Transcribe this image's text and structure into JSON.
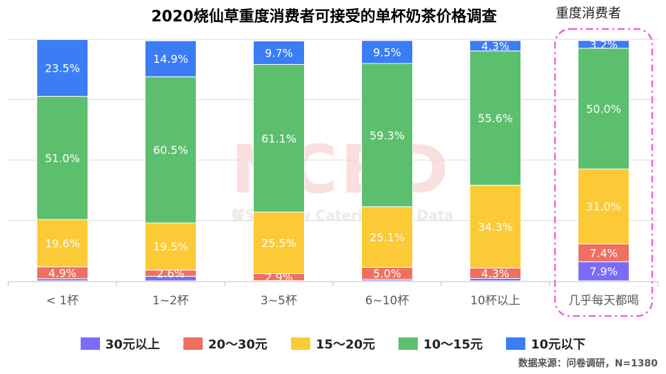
{
  "header": {
    "title": "2020烧仙草重度消费者可接受的单杯奶茶价格调查",
    "highlight_label": "重度消费者",
    "source": "数据来源：问卷调研，N=1380"
  },
  "watermark": {
    "big": "NCBD",
    "small": "餐宝典 New Catering Big Data"
  },
  "chart_data": {
    "type": "bar",
    "stacked": true,
    "ylim": [
      0,
      100
    ],
    "grid": true,
    "legend_position": "bottom",
    "categories": [
      "< 1杯",
      "1~2杯",
      "3~5杯",
      "6~10杯",
      "10杯以上",
      "几乎每天都喝"
    ],
    "series": [
      {
        "name": "30元以上",
        "color": "#7b6cf6",
        "values": [
          0.9,
          1.9,
          0.1,
          0.6,
          1.0,
          7.9
        ],
        "labels": [
          "",
          "",
          "",
          "",
          "",
          "7.9%"
        ]
      },
      {
        "name": "20～30元",
        "color": "#f07060",
        "values": [
          4.9,
          2.6,
          2.9,
          5.0,
          4.3,
          7.4
        ],
        "labels": [
          "4.9%",
          "2.6%",
          "2.9%",
          "5.0%",
          "4.3%",
          "7.4%"
        ]
      },
      {
        "name": "15～20元",
        "color": "#fcca36",
        "values": [
          19.6,
          19.5,
          25.5,
          25.1,
          34.3,
          31.0
        ],
        "labels": [
          "19.6%",
          "19.5%",
          "25.5%",
          "25.1%",
          "34.3%",
          "31.0%"
        ]
      },
      {
        "name": "10～15元",
        "color": "#5cbf6e",
        "values": [
          51.0,
          60.5,
          61.1,
          59.3,
          55.6,
          50.0
        ],
        "labels": [
          "51.0%",
          "60.5%",
          "61.1%",
          "59.3%",
          "55.6%",
          "50.0%"
        ]
      },
      {
        "name": "10元以下",
        "color": "#3b7df5",
        "values": [
          23.5,
          14.9,
          9.7,
          9.5,
          4.3,
          3.2
        ],
        "labels": [
          "23.5%",
          "14.9%",
          "9.7%",
          "9.5%",
          "4.3%",
          "3.2%"
        ]
      }
    ]
  }
}
